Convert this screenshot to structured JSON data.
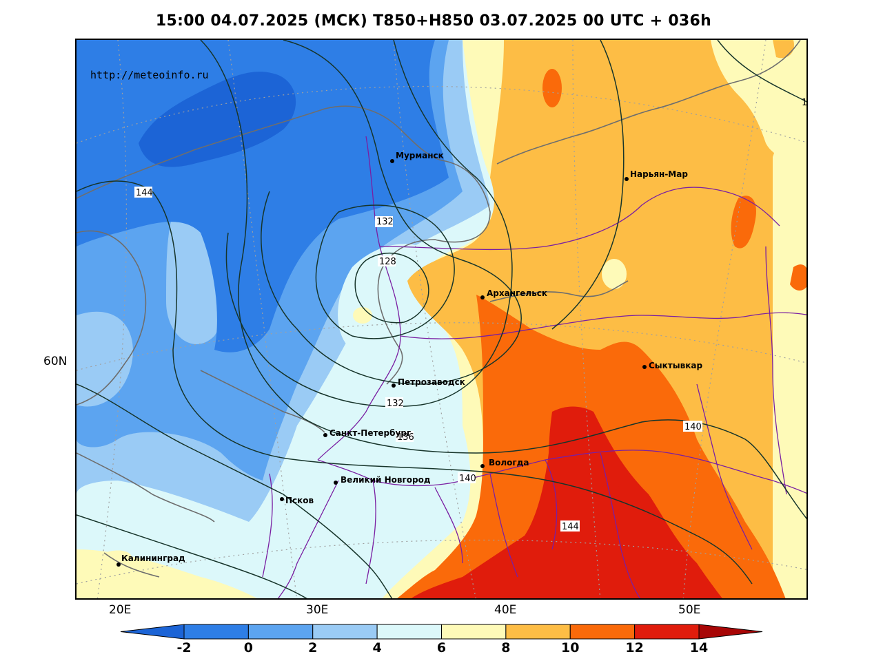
{
  "title": "15:00 04.07.2025 (МСК) T850+H850 03.07.2025 00 UTC + 036h",
  "site_url": "http://meteoinfo.ru",
  "axes": {
    "x_ticks": [
      "20E",
      "30E",
      "40E",
      "50E"
    ],
    "y_ticks": [
      "60N"
    ]
  },
  "cities": [
    {
      "name": "Мурманск"
    },
    {
      "name": "Нарьян-Мар"
    },
    {
      "name": "Архангельск"
    },
    {
      "name": "Сыктывкар"
    },
    {
      "name": "Петрозаводск"
    },
    {
      "name": "Санкт-Петербург"
    },
    {
      "name": "Вологда"
    },
    {
      "name": "Великий Новгород"
    },
    {
      "name": "Псков"
    },
    {
      "name": "Калининград"
    }
  ],
  "contour_labels": [
    "144",
    "132",
    "128",
    "132",
    "136",
    "140",
    "140",
    "144",
    "1"
  ],
  "colorbar": {
    "labels": [
      "-2",
      "0",
      "2",
      "4",
      "6",
      "8",
      "10",
      "12",
      "14"
    ],
    "colors": [
      "#1c64d6",
      "#2e7ee6",
      "#5ca4f0",
      "#9acbf5",
      "#dcf8fa",
      "#fefab8",
      "#fdbd45",
      "#fa6a0a",
      "#e01c0c",
      "#a80606"
    ]
  },
  "palette": {
    "t_m4": "#1c64d6",
    "t_m2": "#2e7ee6",
    "t_0": "#5ca4f0",
    "t_2": "#9acbf5",
    "t_4": "#dcf8fa",
    "t_6": "#fefab8",
    "t_8": "#fdbd45",
    "t_10": "#fa6a0a",
    "t_12": "#e01c0c",
    "t_14": "#a80606",
    "contour": "#17352b",
    "coast": "#6e6e6e",
    "border": "#7a1fa2",
    "grid": "#a0a0a0"
  }
}
